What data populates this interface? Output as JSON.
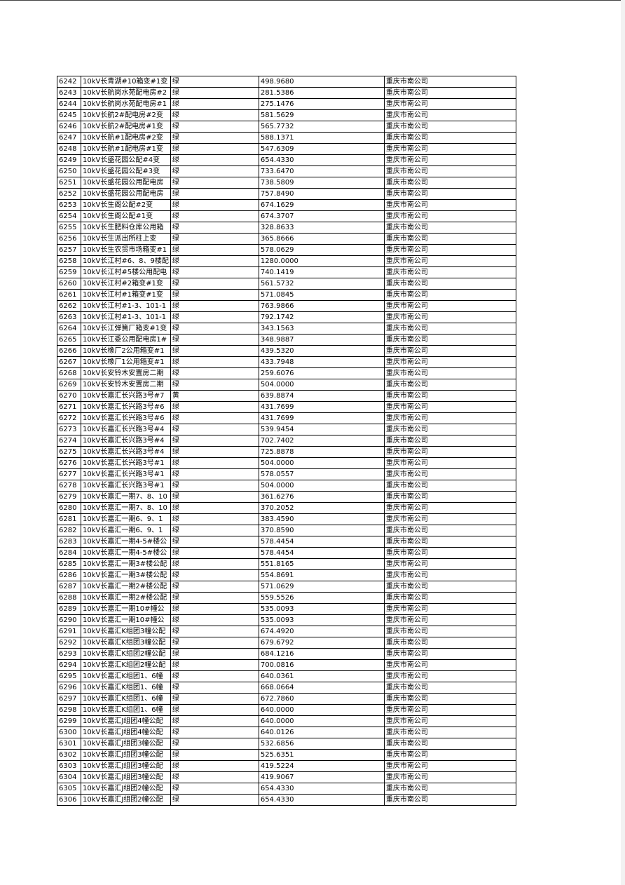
{
  "table": {
    "rows": [
      [
        "6242",
        "10kV长青湖#10箱变#1变",
        "绿",
        "498.9680",
        "重庆市南公司"
      ],
      [
        "6243",
        "10kV长航岗水苑配电房#2",
        "绿",
        "281.5386",
        "重庆市南公司"
      ],
      [
        "6244",
        "10kV长航岗水苑配电房#1",
        "绿",
        "275.1476",
        "重庆市南公司"
      ],
      [
        "6245",
        "10kV长航2#配电房#2变",
        "绿",
        "581.5629",
        "重庆市南公司"
      ],
      [
        "6246",
        "10kV长航2#配电房#1变",
        "绿",
        "565.7732",
        "重庆市南公司"
      ],
      [
        "6247",
        "10kV长航#1配电房#2变",
        "绿",
        "588.1371",
        "重庆市南公司"
      ],
      [
        "6248",
        "10kV长航#1配电房#1变",
        "绿",
        "547.6309",
        "重庆市南公司"
      ],
      [
        "6249",
        "10kV长盛花园公配#4变",
        "绿",
        "654.4330",
        "重庆市南公司"
      ],
      [
        "6250",
        "10kV长盛花园公配#3变",
        "绿",
        "733.6470",
        "重庆市南公司"
      ],
      [
        "6251",
        "10kV长盛花园公用配电房",
        "绿",
        "738.5809",
        "重庆市南公司"
      ],
      [
        "6252",
        "10kV长盛花园公用配电房",
        "绿",
        "757.8490",
        "重庆市南公司"
      ],
      [
        "6253",
        "10kV长生阁公配#2变",
        "绿",
        "674.1629",
        "重庆市南公司"
      ],
      [
        "6254",
        "10kV长生阁公配#1变",
        "绿",
        "674.3707",
        "重庆市南公司"
      ],
      [
        "6255",
        "10kV长生肥料仓库公用箱",
        "绿",
        "328.8633",
        "重庆市南公司"
      ],
      [
        "6256",
        "10kV长生派出所柱上变",
        "绿",
        "365.8666",
        "重庆市南公司"
      ],
      [
        "6257",
        "10kV长生农贸市场箱变#1",
        "绿",
        "578.0629",
        "重庆市南公司"
      ],
      [
        "6258",
        "10kV长江村#6、8、9楼配",
        "绿",
        "1280.0000",
        "重庆市南公司"
      ],
      [
        "6259",
        "10kV长江村#5楼公用配电",
        "绿",
        "740.1419",
        "重庆市南公司"
      ],
      [
        "6260",
        "10kV长江村#2箱变#1变",
        "绿",
        "561.5732",
        "重庆市南公司"
      ],
      [
        "6261",
        "10kV长江村#1箱变#1变",
        "绿",
        "571.0845",
        "重庆市南公司"
      ],
      [
        "6262",
        "10kV长江村#1-3、101-1",
        "绿",
        "763.9866",
        "重庆市南公司"
      ],
      [
        "6263",
        "10kV长江村#1-3、101-1",
        "绿",
        "792.1742",
        "重庆市南公司"
      ],
      [
        "6264",
        "10kV长江弹簧厂箱变#1变",
        "绿",
        "343.1563",
        "重庆市南公司"
      ],
      [
        "6265",
        "10kV长江委公用配电房1#",
        "绿",
        "348.9887",
        "重庆市南公司"
      ],
      [
        "6266",
        "10kV长橡厂2公用箱变#1",
        "绿",
        "439.5320",
        "重庆市南公司"
      ],
      [
        "6267",
        "10kV长橡厂1公用箱变#1",
        "绿",
        "433.7948",
        "重庆市南公司"
      ],
      [
        "6268",
        "10kV长安铃木安置房二期",
        "绿",
        "259.6076",
        "重庆市南公司"
      ],
      [
        "6269",
        "10kV长安铃木安置房二期",
        "绿",
        "504.0000",
        "重庆市南公司"
      ],
      [
        "6270",
        "10kV长嘉汇长兴路3号#7",
        "黄",
        "639.8874",
        "重庆市南公司"
      ],
      [
        "6271",
        "10kV长嘉汇长兴路3号#6",
        "绿",
        "431.7699",
        "重庆市南公司"
      ],
      [
        "6272",
        "10kV长嘉汇长兴路3号#6",
        "绿",
        "431.7699",
        "重庆市南公司"
      ],
      [
        "6273",
        "10kV长嘉汇长兴路3号#4",
        "绿",
        "539.9454",
        "重庆市南公司"
      ],
      [
        "6274",
        "10kV长嘉汇长兴路3号#4",
        "绿",
        "702.7402",
        "重庆市南公司"
      ],
      [
        "6275",
        "10kV长嘉汇长兴路3号#4",
        "绿",
        "725.8878",
        "重庆市南公司"
      ],
      [
        "6276",
        "10kV长嘉汇长兴路3号#1",
        "绿",
        "504.0000",
        "重庆市南公司"
      ],
      [
        "6277",
        "10kV长嘉汇长兴路3号#1",
        "绿",
        "578.0557",
        "重庆市南公司"
      ],
      [
        "6278",
        "10kV长嘉汇长兴路3号#1",
        "绿",
        "504.0000",
        "重庆市南公司"
      ],
      [
        "6279",
        "10kV长嘉汇一期7、8、10",
        "绿",
        "361.6276",
        "重庆市南公司"
      ],
      [
        "6280",
        "10kV长嘉汇一期7、8、10",
        "绿",
        "370.2052",
        "重庆市南公司"
      ],
      [
        "6281",
        "10kV长嘉汇一期6、9、1",
        "绿",
        "383.4590",
        "重庆市南公司"
      ],
      [
        "6282",
        "10kV长嘉汇一期6、9、1",
        "绿",
        "370.8590",
        "重庆市南公司"
      ],
      [
        "6283",
        "10kV长嘉汇一期4-5#楼公",
        "绿",
        "578.4454",
        "重庆市南公司"
      ],
      [
        "6284",
        "10kV长嘉汇一期4-5#楼公",
        "绿",
        "578.4454",
        "重庆市南公司"
      ],
      [
        "6285",
        "10kV长嘉汇一期3#楼公配",
        "绿",
        "551.8165",
        "重庆市南公司"
      ],
      [
        "6286",
        "10kV长嘉汇一期3#楼公配",
        "绿",
        "554.8691",
        "重庆市南公司"
      ],
      [
        "6287",
        "10kV长嘉汇一期2#楼公配",
        "绿",
        "571.0629",
        "重庆市南公司"
      ],
      [
        "6288",
        "10kV长嘉汇一期2#楼公配",
        "绿",
        "559.5526",
        "重庆市南公司"
      ],
      [
        "6289",
        "10kV长嘉汇一期10#幢公",
        "绿",
        "535.0093",
        "重庆市南公司"
      ],
      [
        "6290",
        "10kV长嘉汇一期10#幢公",
        "绿",
        "535.0093",
        "重庆市南公司"
      ],
      [
        "6291",
        "10kV长嘉汇K组团3幢公配",
        "绿",
        "674.4920",
        "重庆市南公司"
      ],
      [
        "6292",
        "10kV长嘉汇K组团3幢公配",
        "绿",
        "679.6792",
        "重庆市南公司"
      ],
      [
        "6293",
        "10kV长嘉汇K组团2幢公配",
        "绿",
        "684.1216",
        "重庆市南公司"
      ],
      [
        "6294",
        "10kV长嘉汇K组团2幢公配",
        "绿",
        "700.0816",
        "重庆市南公司"
      ],
      [
        "6295",
        "10kV长嘉汇K组团1、6幢",
        "绿",
        "640.0361",
        "重庆市南公司"
      ],
      [
        "6296",
        "10kV长嘉汇K组团1、6幢",
        "绿",
        "668.0664",
        "重庆市南公司"
      ],
      [
        "6297",
        "10kV长嘉汇K组团1、6幢",
        "绿",
        "672.7860",
        "重庆市南公司"
      ],
      [
        "6298",
        "10kV长嘉汇K组团1、6幢",
        "绿",
        "640.0000",
        "重庆市南公司"
      ],
      [
        "6299",
        "10kV长嘉汇J组团4幢公配",
        "绿",
        "640.0000",
        "重庆市南公司"
      ],
      [
        "6300",
        "10kV长嘉汇J组团4幢公配",
        "绿",
        "640.0126",
        "重庆市南公司"
      ],
      [
        "6301",
        "10kV长嘉汇J组团3幢公配",
        "绿",
        "532.6856",
        "重庆市南公司"
      ],
      [
        "6302",
        "10kV长嘉汇J组团3幢公配",
        "绿",
        "525.6351",
        "重庆市南公司"
      ],
      [
        "6303",
        "10kV长嘉汇J组团3幢公配",
        "绿",
        "419.5224",
        "重庆市南公司"
      ],
      [
        "6304",
        "10kV长嘉汇J组团3幢公配",
        "绿",
        "419.9067",
        "重庆市南公司"
      ],
      [
        "6305",
        "10kV长嘉汇J组团2幢公配",
        "绿",
        "654.4330",
        "重庆市南公司"
      ],
      [
        "6306",
        "10kV长嘉汇J组团2幢公配",
        "绿",
        "654.4330",
        "重庆市南公司"
      ]
    ]
  }
}
